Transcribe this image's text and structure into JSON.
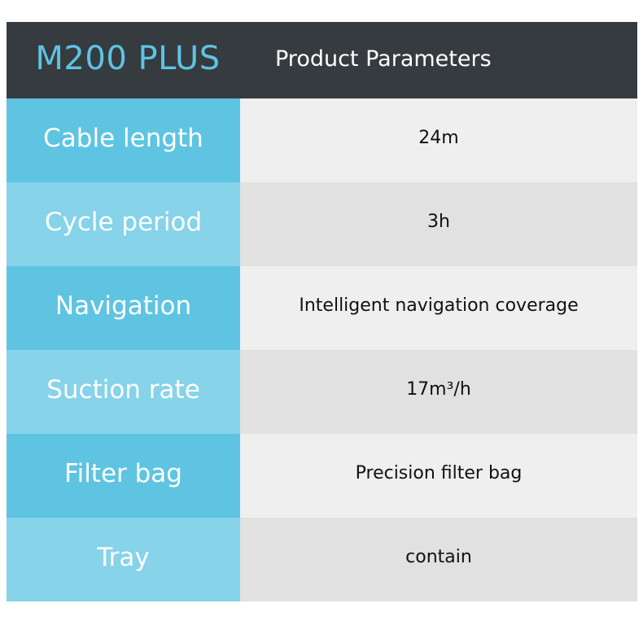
{
  "header": {
    "model": "M200 PLUS",
    "title": "Product Parameters"
  },
  "rows": [
    {
      "label": "Cable length",
      "value": "24m"
    },
    {
      "label": "Cycle period",
      "value": "3h"
    },
    {
      "label": "Navigation",
      "value": "Intelligent navigation coverage"
    },
    {
      "label": "Suction rate",
      "value": "17m³/h"
    },
    {
      "label": "Filter bag",
      "value": "Precision filter bag"
    },
    {
      "label": "Tray",
      "value": "contain"
    }
  ],
  "colors": {
    "header_bg": "#363b40",
    "model_text": "#5dc4e3",
    "label_bg_primary": "#5ec4e2",
    "label_bg_secondary": "#86d3ea",
    "value_bg_light": "#efefef",
    "value_bg_dark": "#e1e1e1"
  }
}
